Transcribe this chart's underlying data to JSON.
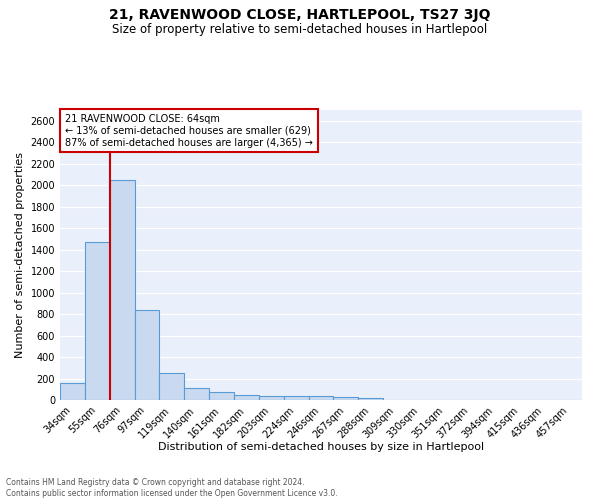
{
  "title": "21, RAVENWOOD CLOSE, HARTLEPOOL, TS27 3JQ",
  "subtitle": "Size of property relative to semi-detached houses in Hartlepool",
  "xlabel": "Distribution of semi-detached houses by size in Hartlepool",
  "ylabel": "Number of semi-detached properties",
  "bar_color": "#c9d9f0",
  "bar_edge_color": "#5b9bd5",
  "background_color": "#eaf0fb",
  "categories": [
    "34sqm",
    "55sqm",
    "76sqm",
    "97sqm",
    "119sqm",
    "140sqm",
    "161sqm",
    "182sqm",
    "203sqm",
    "224sqm",
    "246sqm",
    "267sqm",
    "288sqm",
    "309sqm",
    "330sqm",
    "351sqm",
    "372sqm",
    "394sqm",
    "415sqm",
    "436sqm",
    "457sqm"
  ],
  "values": [
    155,
    1470,
    2050,
    840,
    250,
    110,
    75,
    45,
    35,
    35,
    35,
    25,
    20,
    0,
    0,
    0,
    0,
    0,
    0,
    0,
    0
  ],
  "ylim": [
    0,
    2700
  ],
  "yticks": [
    0,
    200,
    400,
    600,
    800,
    1000,
    1200,
    1400,
    1600,
    1800,
    2000,
    2200,
    2400,
    2600
  ],
  "property_line_x": 1.5,
  "annotation_title": "21 RAVENWOOD CLOSE: 64sqm",
  "annotation_line1": "← 13% of semi-detached houses are smaller (629)",
  "annotation_line2": "87% of semi-detached houses are larger (4,365) →",
  "annotation_box_color": "#ffffff",
  "annotation_box_edge": "#cc0000",
  "redline_color": "#cc0000",
  "footer_line1": "Contains HM Land Registry data © Crown copyright and database right 2024.",
  "footer_line2": "Contains public sector information licensed under the Open Government Licence v3.0.",
  "title_fontsize": 10,
  "subtitle_fontsize": 8.5,
  "ylabel_fontsize": 8,
  "xlabel_fontsize": 8,
  "tick_fontsize": 7,
  "footer_fontsize": 5.5
}
